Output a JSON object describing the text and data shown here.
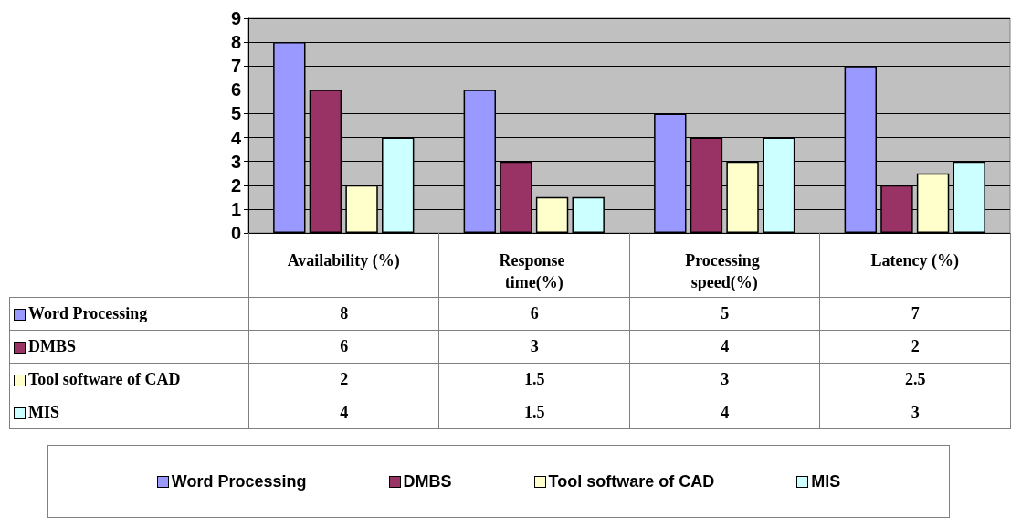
{
  "chart_data": {
    "type": "bar",
    "categories": [
      "Availability (%)",
      "Response time(%)",
      "Processing speed(%)",
      "Latency (%)"
    ],
    "series": [
      {
        "name": "Word Processing",
        "color": "#9999ff",
        "values": [
          8,
          6,
          5,
          7
        ]
      },
      {
        "name": "DMBS",
        "color": "#993366",
        "values": [
          6,
          3,
          4,
          2
        ]
      },
      {
        "name": "Tool software of CAD",
        "color": "#ffffcc",
        "values": [
          2,
          1.5,
          3,
          2.5
        ]
      },
      {
        "name": "MIS",
        "color": "#ccffff",
        "values": [
          4,
          1.5,
          4,
          3
        ]
      }
    ],
    "ylim": [
      0,
      9
    ],
    "yticks": [
      0,
      1,
      2,
      3,
      4,
      5,
      6,
      7,
      8,
      9
    ],
    "grid": "y",
    "legend": "bottom",
    "data_labels": true
  }
}
